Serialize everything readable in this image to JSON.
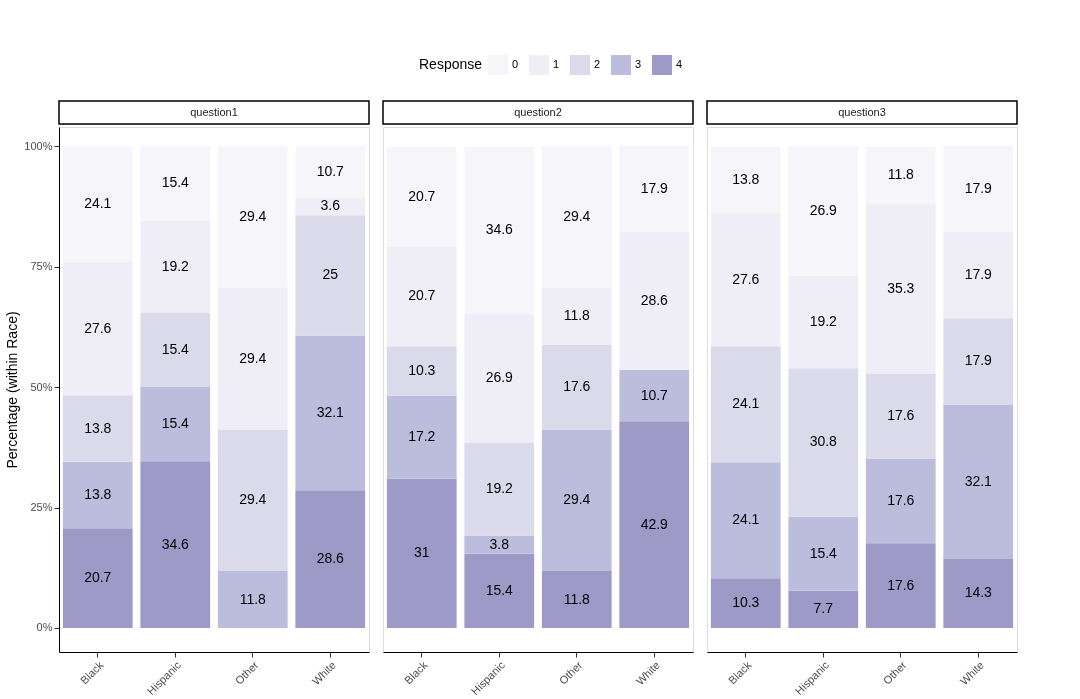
{
  "chart_data": [
    {
      "type": "bar",
      "stacked": true,
      "title": "question1",
      "ylabel": "Percentage (within Race)",
      "legend_title": "Response",
      "legend": "top",
      "data_labels": true,
      "grid": false,
      "categories": [
        "Black",
        "Hispanic",
        "Other",
        "White"
      ],
      "ylim": [
        -5,
        104
      ],
      "yticks": [
        {
          "value": 0,
          "label": "0%"
        },
        {
          "value": 25,
          "label": "25%"
        },
        {
          "value": 50,
          "label": "50%"
        },
        {
          "value": 75,
          "label": "75%"
        },
        {
          "value": 100,
          "label": "100%"
        }
      ],
      "series": [
        {
          "name": "4",
          "color": "#9e9ac8",
          "values": [
            20.7,
            34.6,
            null,
            28.6
          ]
        },
        {
          "name": "3",
          "color": "#bcbddc",
          "values": [
            13.8,
            15.4,
            11.8,
            32.1
          ]
        },
        {
          "name": "2",
          "color": "#dadaeb",
          "values": [
            13.8,
            15.4,
            29.4,
            25
          ]
        },
        {
          "name": "1",
          "color": "#efedf5",
          "values": [
            27.6,
            19.2,
            29.4,
            3.6
          ]
        },
        {
          "name": "0",
          "color": "#f6f5fa",
          "values": [
            24.1,
            15.4,
            29.4,
            10.7
          ]
        }
      ]
    },
    {
      "type": "bar",
      "stacked": true,
      "title": "question2",
      "data_labels": true,
      "grid": false,
      "tick_labels": "x",
      "categories": [
        "Black",
        "Hispanic",
        "Other",
        "White"
      ],
      "ylim": [
        -5,
        104
      ],
      "series": [
        {
          "name": "4",
          "color": "#9e9ac8",
          "values": [
            31,
            15.4,
            11.8,
            42.9
          ]
        },
        {
          "name": "3",
          "color": "#bcbddc",
          "values": [
            17.2,
            3.8,
            29.4,
            10.7
          ]
        },
        {
          "name": "2",
          "color": "#dadaeb",
          "values": [
            10.3,
            19.2,
            17.6,
            null
          ]
        },
        {
          "name": "1",
          "color": "#efedf5",
          "values": [
            20.7,
            26.9,
            11.8,
            28.6
          ]
        },
        {
          "name": "0",
          "color": "#f6f5fa",
          "values": [
            20.7,
            34.6,
            29.4,
            17.9
          ]
        }
      ]
    },
    {
      "type": "bar",
      "stacked": true,
      "title": "question3",
      "data_labels": true,
      "grid": false,
      "tick_labels": "x",
      "categories": [
        "Black",
        "Hispanic",
        "Other",
        "White"
      ],
      "ylim": [
        -5,
        104
      ],
      "series": [
        {
          "name": "4",
          "color": "#9e9ac8",
          "values": [
            10.3,
            7.7,
            17.6,
            14.3
          ]
        },
        {
          "name": "3",
          "color": "#bcbddc",
          "values": [
            24.1,
            15.4,
            17.6,
            32.1
          ]
        },
        {
          "name": "2",
          "color": "#dadaeb",
          "values": [
            24.1,
            30.8,
            17.6,
            17.9
          ]
        },
        {
          "name": "1",
          "color": "#efedf5",
          "values": [
            27.6,
            19.2,
            35.3,
            17.9
          ]
        },
        {
          "name": "0",
          "color": "#f6f5fa",
          "values": [
            13.8,
            26.9,
            11.8,
            17.9
          ]
        }
      ]
    }
  ]
}
